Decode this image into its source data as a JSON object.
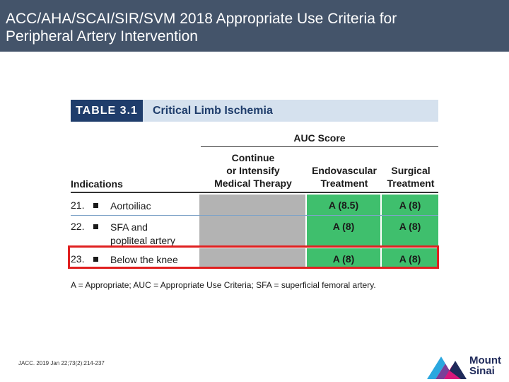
{
  "title": {
    "line1": "ACC/AHA/SCAI/SIR/SVM 2018 Appropriate Use Criteria for",
    "line2": "Peripheral Artery Intervention"
  },
  "table": {
    "number": "TABLE 3.1",
    "caption": "Critical Limb Ischemia",
    "auc_score_label": "AUC Score",
    "headers": {
      "indications": "Indications",
      "medical": [
        "Continue",
        "or Intensify",
        "Medical Therapy"
      ],
      "endovascular": [
        "Endovascular",
        "Treatment"
      ],
      "surgical": [
        "Surgical",
        "Treatment"
      ]
    },
    "rows": [
      {
        "num": "21.",
        "indication": [
          "Aortoiliac"
        ],
        "endovascular": "A (8.5)",
        "surgical": "A (8)"
      },
      {
        "num": "22.",
        "indication": [
          "SFA and",
          "popliteal artery"
        ],
        "endovascular": "A (8)",
        "surgical": "A (8)"
      },
      {
        "num": "23.",
        "indication": [
          "Below the knee"
        ],
        "endovascular": "A (8)",
        "surgical": "A (8)"
      }
    ],
    "footnote": "A = Appropriate; AUC = Appropriate Use Criteria; SFA = superficial femoral artery."
  },
  "citation": "JACC. 2019 Jan 22;73(2):214-237",
  "logo": {
    "line1": "Mount",
    "line2": "Sinai"
  },
  "colors": {
    "title_bg": "#44546a",
    "table_num_bg": "#1f3d6b",
    "caption_bg": "#d5e1ee",
    "green": "#3fbf6d",
    "gray": "#b3b3b3",
    "highlight": "#e02020"
  }
}
